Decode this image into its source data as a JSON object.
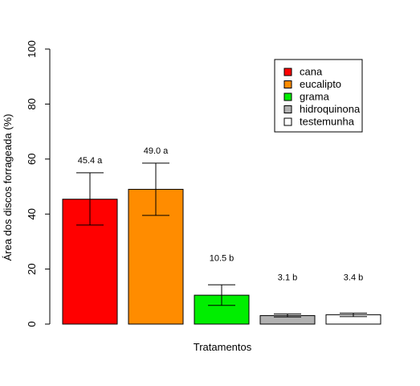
{
  "chart_data": {
    "type": "bar",
    "title": "",
    "xlabel": "Tratamentos",
    "ylabel": "Área dos discos forrageada (%)",
    "ylim": [
      0,
      100
    ],
    "yticks": [
      0,
      20,
      40,
      60,
      80,
      100
    ],
    "grid": false,
    "legend_position": "top-right",
    "categories": [
      "cana",
      "eucalipto",
      "grama",
      "hidroquinona",
      "testemunha"
    ],
    "values": [
      45.4,
      49.0,
      10.5,
      3.1,
      3.4
    ],
    "error_low": [
      36.0,
      39.5,
      6.8,
      2.6,
      2.7
    ],
    "error_high": [
      55.0,
      58.5,
      14.3,
      3.7,
      4.0
    ],
    "labels": [
      "45.4 a",
      "49.0 a",
      "10.5 b",
      "3.1 b",
      "3.4 b"
    ],
    "label_y": [
      58.5,
      62.0,
      23.0,
      16.0,
      16.0
    ],
    "colors": [
      "#ff0000",
      "#ff8c00",
      "#00ee00",
      "#b2b2b2",
      "#ffffff"
    ]
  }
}
